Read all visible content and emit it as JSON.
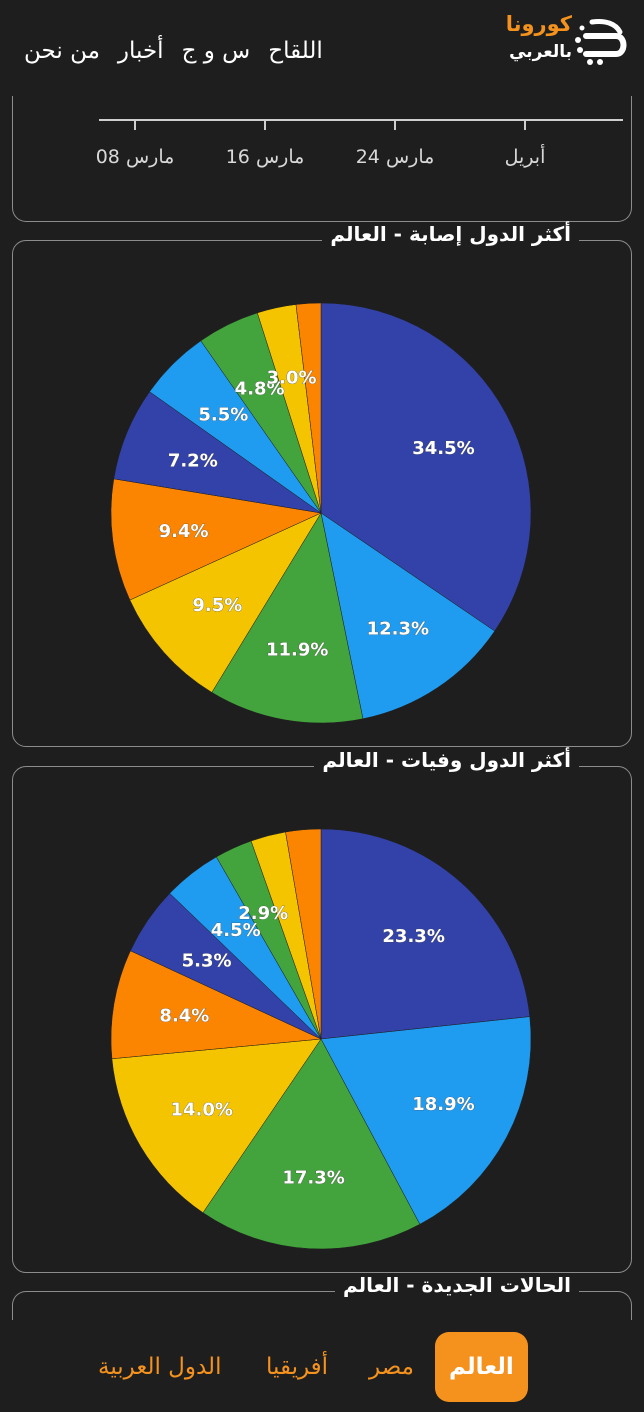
{
  "header": {
    "logo": {
      "line1": "كورونا",
      "line2": "بالعربي"
    },
    "nav": [
      "اللقاح",
      "س و ج",
      "أخبار",
      "من نحن"
    ]
  },
  "axis_card": {
    "ticks": [
      "أبريل",
      "مارس 24",
      "مارس 16",
      "مارس 08"
    ]
  },
  "cases_card": {
    "title": "أكثر الدول إصابة - العالم"
  },
  "deaths_card": {
    "title": "أكثر الدول وفيات - العالم"
  },
  "new_cases_card": {
    "title": "الحالات الجديدة - العالم"
  },
  "tabs": [
    {
      "label": "العالم",
      "active": true
    },
    {
      "label": "مصر",
      "active": false
    },
    {
      "label": "أفريقيا",
      "active": false
    },
    {
      "label": "الدول العربية",
      "active": false
    }
  ],
  "colors": {
    "blue_dark": "#3342a8",
    "blue_light": "#1f9bf0",
    "green": "#43a33c",
    "yellow": "#f5c400",
    "orange": "#fb8500",
    "accent": "#f5921e"
  },
  "chart_data": [
    {
      "type": "pie",
      "title": "أكثر الدول إصابة - العالم",
      "values": [
        34.5,
        12.3,
        11.9,
        9.5,
        9.4,
        7.2,
        5.5,
        4.8,
        3.0,
        1.9
      ],
      "labels": [
        "34.5%",
        "12.3%",
        "11.9%",
        "9.5%",
        "9.4%",
        "7.2%",
        "5.5%",
        "4.8%",
        "3.0%",
        ""
      ],
      "colors": [
        "#3342a8",
        "#1f9bf0",
        "#43a33c",
        "#f5c400",
        "#fb8500",
        "#3342a8",
        "#1f9bf0",
        "#43a33c",
        "#f5c400",
        "#fb8500"
      ]
    },
    {
      "type": "pie",
      "title": "أكثر الدول وفيات - العالم",
      "values": [
        23.3,
        18.9,
        17.3,
        14.0,
        8.4,
        5.3,
        4.5,
        2.9,
        2.7,
        2.7
      ],
      "labels": [
        "23.3%",
        "18.9%",
        "17.3%",
        "14.0%",
        "8.4%",
        "5.3%",
        "4.5%",
        "2.9%",
        "",
        ""
      ],
      "colors": [
        "#3342a8",
        "#1f9bf0",
        "#43a33c",
        "#f5c400",
        "#fb8500",
        "#3342a8",
        "#1f9bf0",
        "#43a33c",
        "#f5c400",
        "#fb8500"
      ]
    }
  ]
}
